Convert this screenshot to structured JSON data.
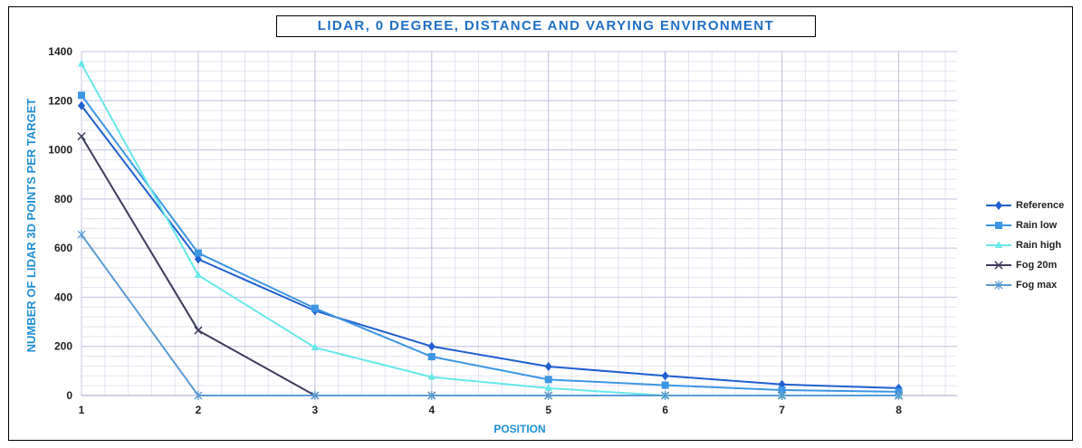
{
  "chart_data": {
    "type": "line",
    "title": "LIDAR, 0 DEGREE, DISTANCE AND VARYING ENVIRONMENT",
    "xlabel": "POSITION",
    "ylabel": "NUMBER OF LIDAR 3D POINTS PER TARGET",
    "x": [
      1,
      2,
      3,
      4,
      5,
      6,
      7,
      8
    ],
    "xlim": [
      1,
      8.5
    ],
    "ylim": [
      0,
      1400
    ],
    "yticks": [
      0,
      200,
      400,
      600,
      800,
      1000,
      1200,
      1400
    ],
    "grid": true,
    "legend_position": "right",
    "series": [
      {
        "name": "Reference",
        "color": "#1f5fd0",
        "marker": "diamond",
        "values": [
          1180,
          555,
          345,
          200,
          118,
          80,
          45,
          30
        ]
      },
      {
        "name": "Rain low",
        "color": "#3b96e3",
        "marker": "square",
        "values": [
          1222,
          580,
          355,
          158,
          65,
          42,
          22,
          15
        ]
      },
      {
        "name": "Rain high",
        "color": "#66e8e8",
        "marker": "triangle",
        "values": [
          1350,
          490,
          195,
          75,
          30,
          0,
          0,
          0
        ]
      },
      {
        "name": "Fog 20m",
        "color": "#3c3c5a",
        "marker": "x",
        "values": [
          1055,
          265,
          0,
          0,
          0,
          0,
          0,
          0
        ]
      },
      {
        "name": "Fog max",
        "color": "#5b9bd5",
        "marker": "star",
        "values": [
          655,
          0,
          0,
          0,
          0,
          0,
          0,
          0
        ]
      }
    ]
  }
}
